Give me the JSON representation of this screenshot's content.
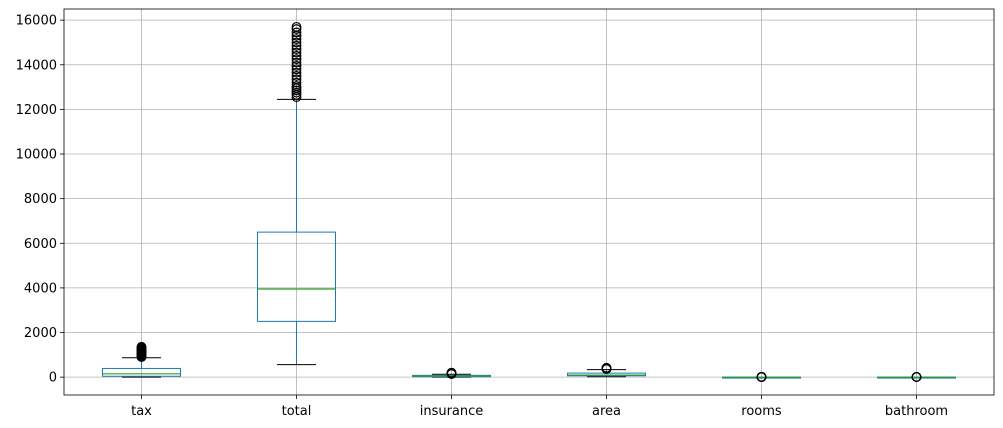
{
  "chart_data": {
    "type": "box",
    "categories": [
      "tax",
      "total",
      "insurance",
      "area",
      "rooms",
      "bathroom"
    ],
    "ylim": [
      -800,
      16500
    ],
    "yticks": [
      0,
      2000,
      4000,
      6000,
      8000,
      10000,
      12000,
      14000,
      16000
    ],
    "grid": true,
    "colors": {
      "box": "#1f77b4",
      "median": "#2ca02c",
      "cap": "#000000",
      "grid": "#b0b0b0",
      "flier": "#000000"
    },
    "boxes": [
      {
        "name": "tax",
        "whisker_low": 0,
        "q1": 40,
        "median": 150,
        "q3": 390,
        "whisker_high": 870,
        "fliers": [
          900,
          930,
          960,
          1000,
          1040,
          1080,
          1120,
          1160,
          1200,
          1240,
          1280,
          1320,
          1360
        ]
      },
      {
        "name": "total",
        "whisker_low": 560,
        "q1": 2500,
        "median": 3950,
        "q3": 6500,
        "whisker_high": 12450,
        "fliers": [
          12550,
          12650,
          12750,
          12850,
          12950,
          13050,
          13200,
          13350,
          13500,
          13650,
          13800,
          13950,
          14100,
          14250,
          14400,
          14550,
          14700,
          14850,
          15000,
          15150,
          15300,
          15450,
          15600,
          15700
        ]
      },
      {
        "name": "insurance",
        "whisker_low": 0,
        "q1": 20,
        "median": 40,
        "q3": 80,
        "whisker_high": 130,
        "fliers": [
          140,
          150,
          160,
          170,
          180,
          190,
          200
        ]
      },
      {
        "name": "area",
        "whisker_low": 20,
        "q1": 60,
        "median": 90,
        "q3": 180,
        "whisker_high": 340,
        "fliers": [
          360,
          380,
          400,
          420
        ]
      },
      {
        "name": "rooms",
        "whisker_low": 1,
        "q1": 2,
        "median": 2,
        "q3": 3,
        "whisker_high": 5,
        "fliers": [
          6,
          7,
          8,
          9,
          10
        ]
      },
      {
        "name": "bathroom",
        "whisker_low": 1,
        "q1": 1,
        "median": 2,
        "q3": 3,
        "whisker_high": 6,
        "fliers": [
          7,
          8,
          9,
          10
        ]
      }
    ]
  }
}
